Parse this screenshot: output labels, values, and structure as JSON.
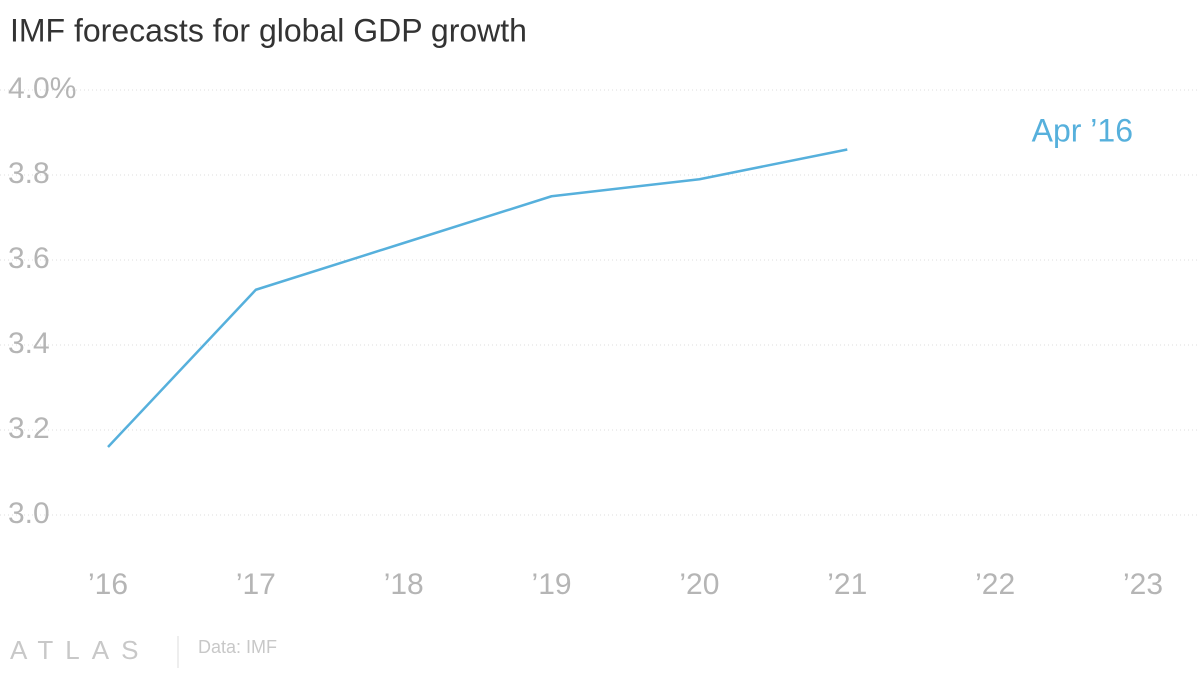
{
  "chart_data": {
    "type": "line",
    "title": "IMF forecasts for global GDP growth",
    "categories": [
      "’16",
      "’17",
      "’18",
      "’19",
      "’20",
      "’21",
      "’22",
      "’23"
    ],
    "series": [
      {
        "name": "Apr ’16",
        "color": "#56b0dc",
        "values": [
          3.16,
          3.53,
          3.64,
          3.75,
          3.79,
          3.86,
          null,
          null
        ]
      }
    ],
    "ylim": [
      3.0,
      4.0
    ],
    "yticks": [
      {
        "value": 3.0,
        "label": "3.0"
      },
      3.2,
      3.4,
      3.6,
      3.8,
      {
        "value": 4.0,
        "label": "4.0%"
      }
    ],
    "grid": true,
    "logo": "ATLAS",
    "source": "Data: IMF"
  }
}
